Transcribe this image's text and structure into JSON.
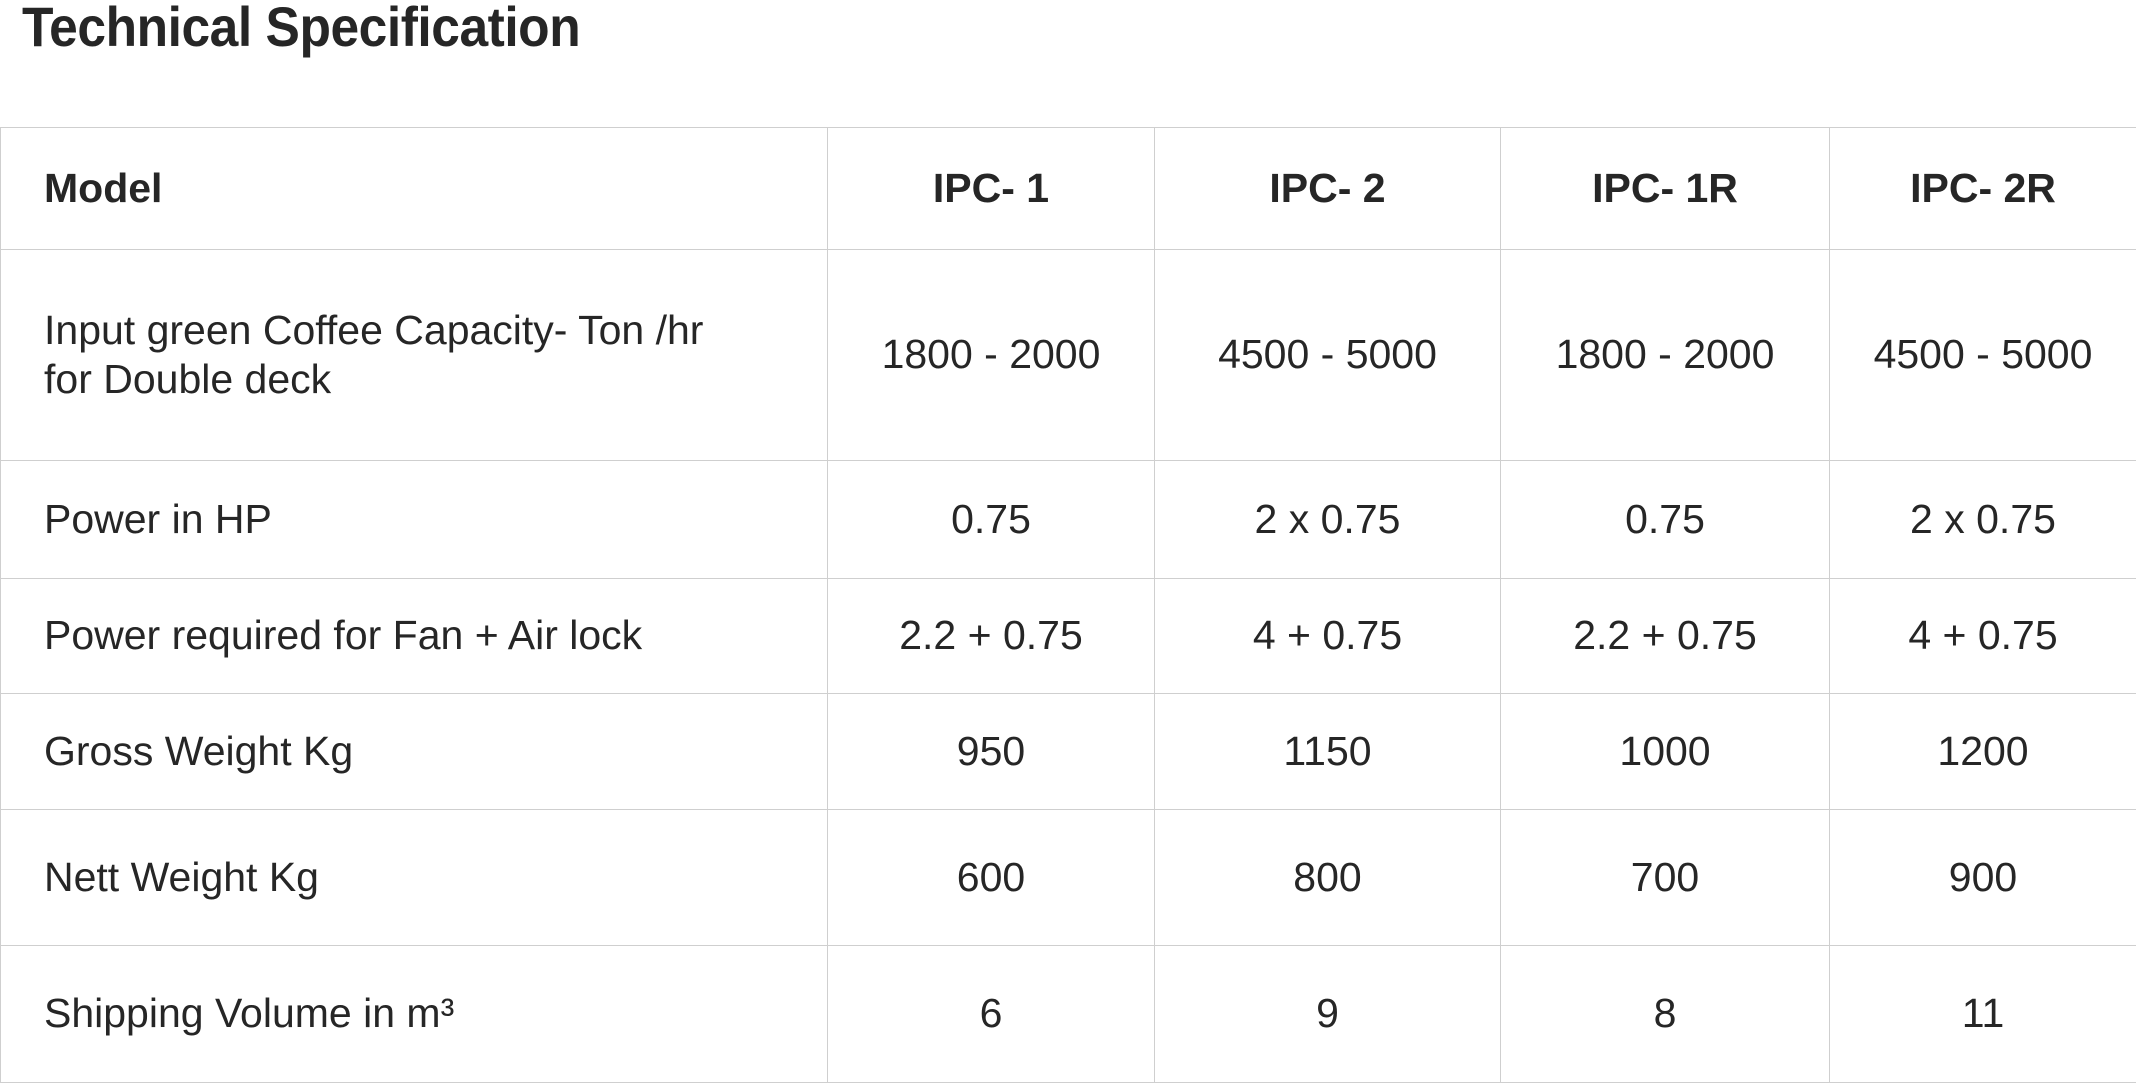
{
  "title": "Technical Specification",
  "table": {
    "header": [
      "Model",
      "IPC- 1",
      "IPC- 2",
      "IPC- 1R",
      "IPC- 2R"
    ],
    "rows": [
      {
        "label_line1": "Input green Coffee Capacity- Ton /hr",
        "label_line2": "for Double deck",
        "values": [
          "1800 - 2000",
          "4500 - 5000",
          "1800 - 2000",
          "4500 - 5000"
        ]
      },
      {
        "label_line1": "Power in HP",
        "values": [
          "0.75",
          "2 x 0.75",
          "0.75",
          "2 x 0.75"
        ]
      },
      {
        "label_line1": "Power required for Fan + Air lock",
        "values": [
          "2.2 + 0.75",
          "4 + 0.75",
          "2.2 + 0.75",
          "4 + 0.75"
        ]
      },
      {
        "label_line1": "Gross Weight Kg",
        "values": [
          "950",
          "1150",
          "1000",
          "1200"
        ]
      },
      {
        "label_line1": "Nett Weight Kg",
        "values": [
          "600",
          "800",
          "700",
          "900"
        ]
      },
      {
        "label_line1": "Shipping Volume in m³",
        "values": [
          "6",
          "9",
          "8",
          "11"
        ]
      }
    ]
  }
}
